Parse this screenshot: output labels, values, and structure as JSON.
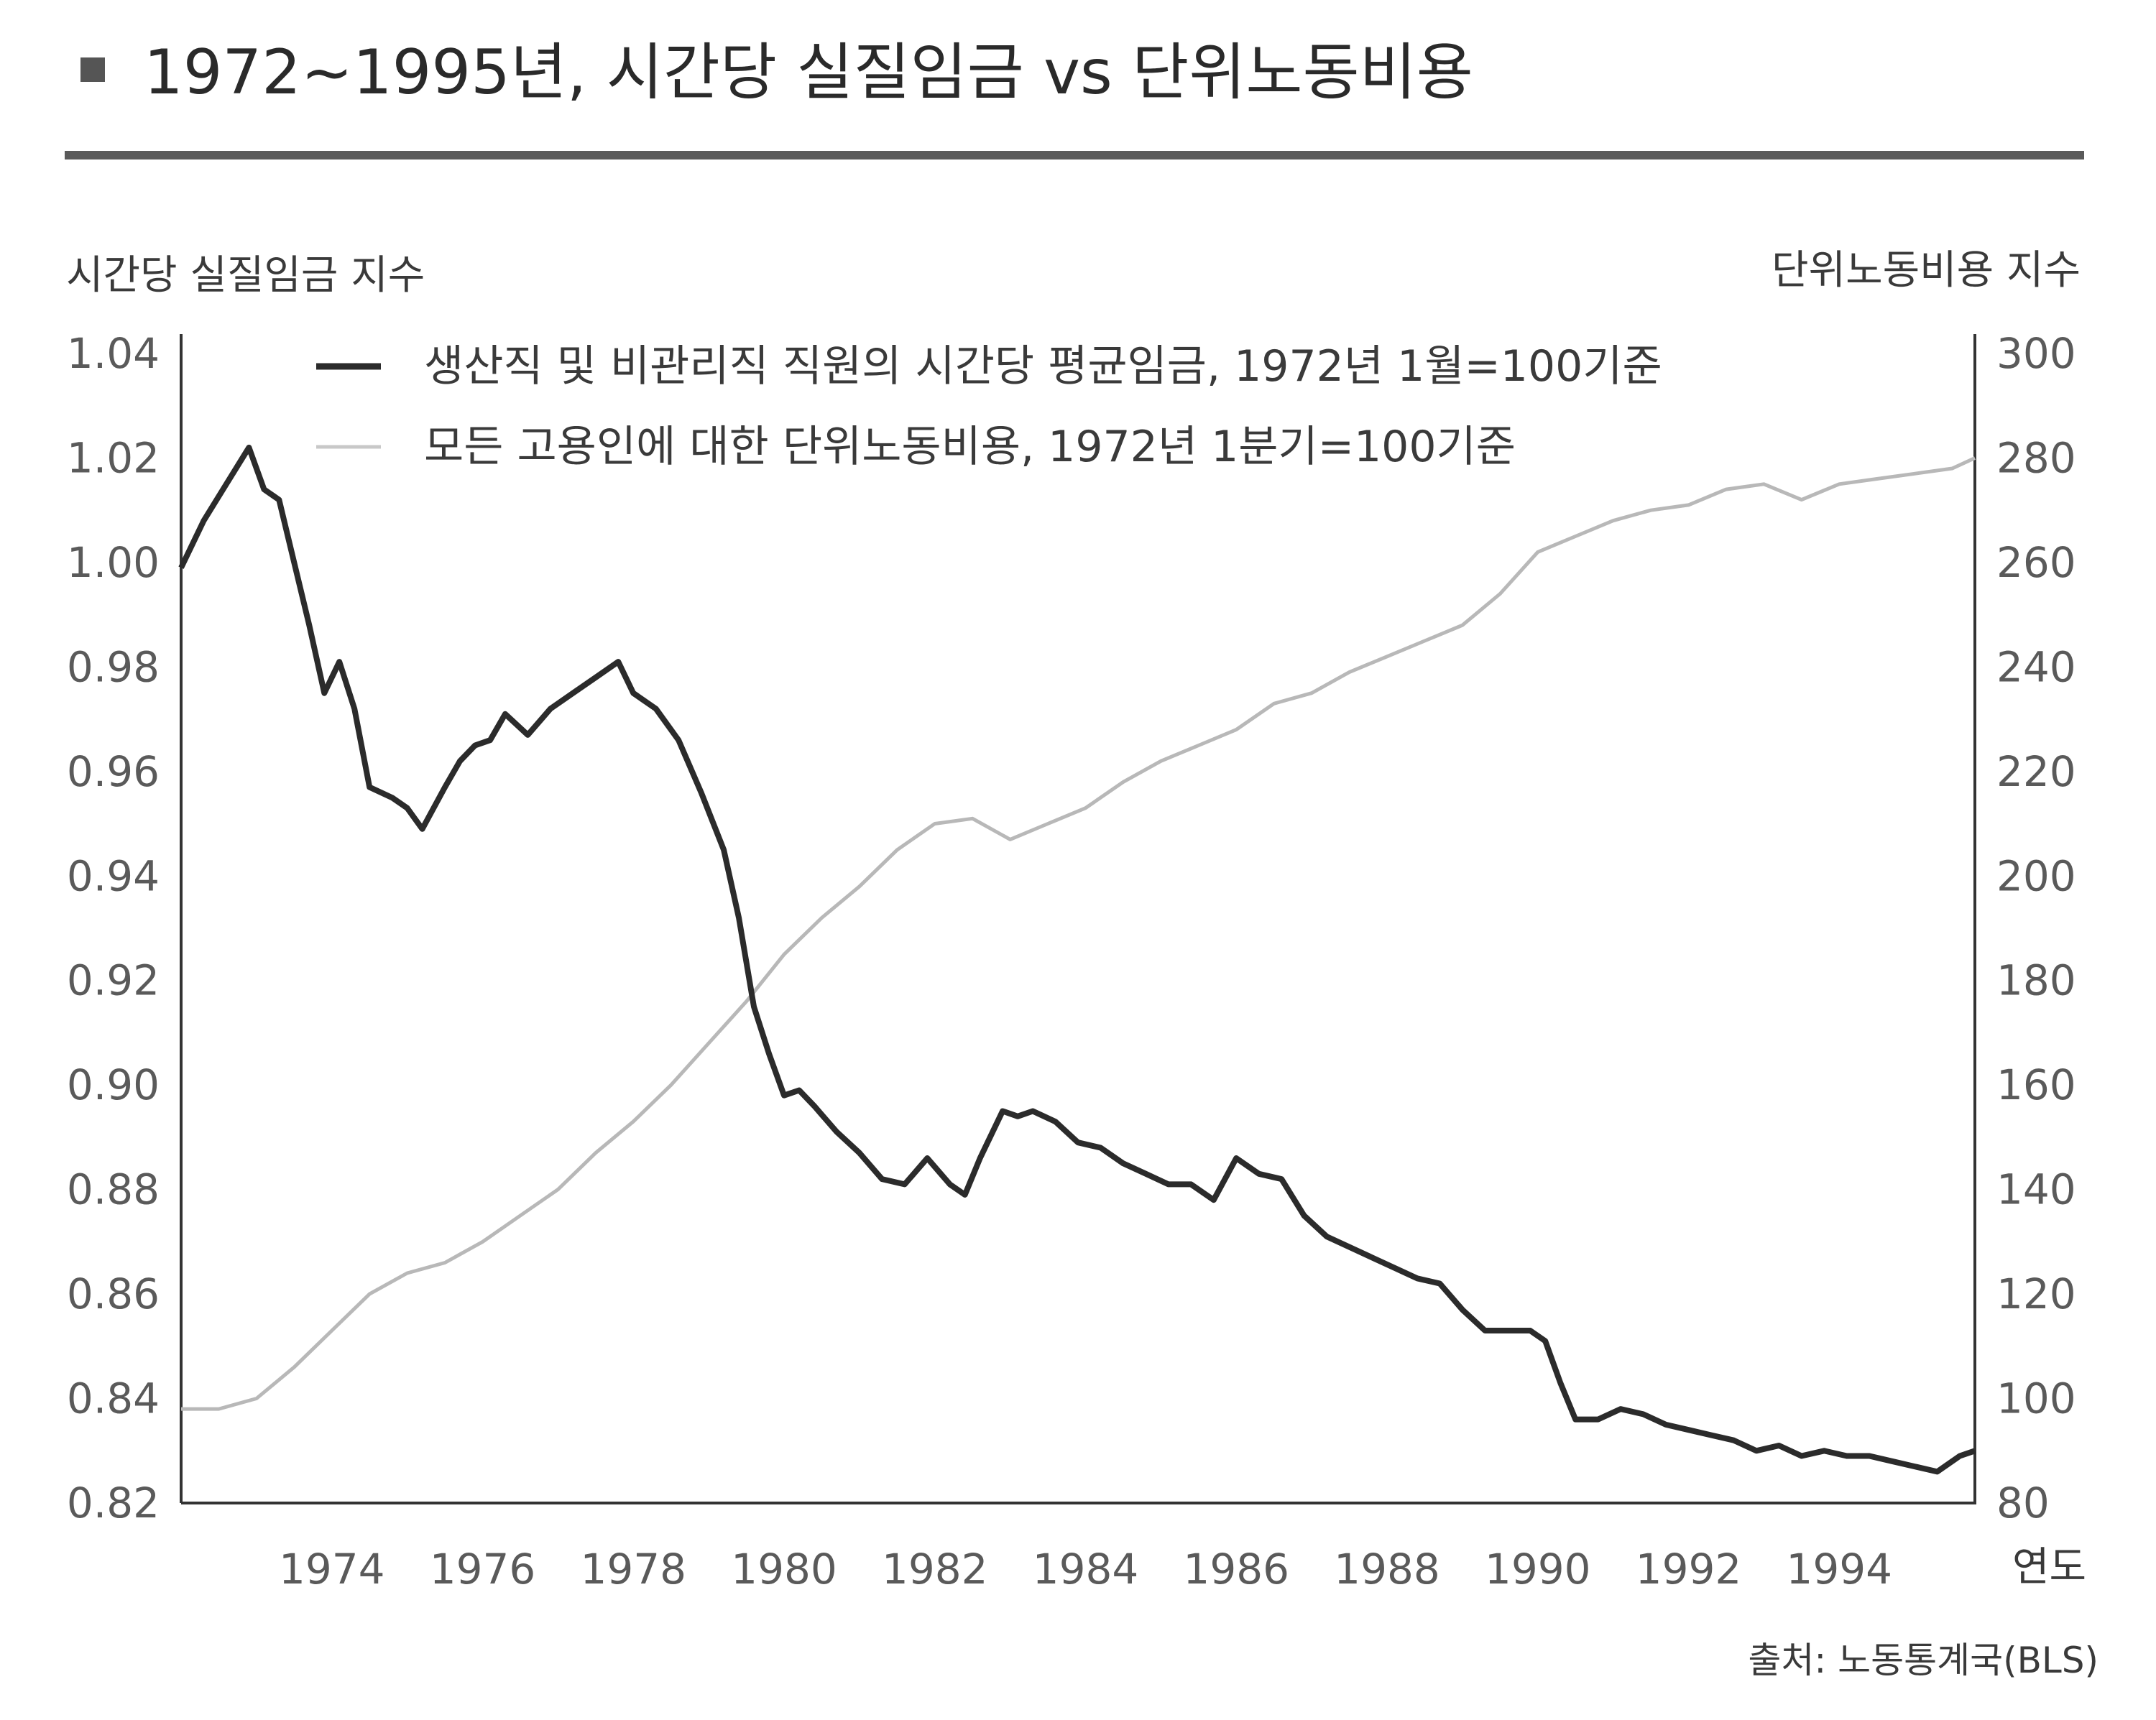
{
  "header": {
    "title": "1972~1995년, 시간당 실질임금 vs 단위노동비용"
  },
  "footer": {
    "source": "출처: 노동통계국(BLS)"
  },
  "chart_data": {
    "type": "line",
    "title": "1972~1995년, 시간당 실질임금 vs 단위노동비용",
    "ylabel_left": "시간당 실질임금 지수",
    "ylabel_right": "단위노동비용 지수",
    "xlabel": "연도",
    "xlim": [
      1972,
      1995.8
    ],
    "ylim_left": [
      0.82,
      1.04
    ],
    "ylim_right": [
      80,
      300
    ],
    "x_ticks": [
      "1974",
      "1976",
      "1978",
      "1980",
      "1982",
      "1984",
      "1986",
      "1988",
      "1990",
      "1992",
      "1994"
    ],
    "y_ticks_left": [
      "0.82",
      "0.84",
      "0.86",
      "0.88",
      "0.90",
      "0.92",
      "0.94",
      "0.96",
      "0.98",
      "1.00",
      "1.02",
      "1.04"
    ],
    "y_ticks_right": [
      "80",
      "100",
      "120",
      "140",
      "160",
      "180",
      "200",
      "220",
      "240",
      "260",
      "280",
      "300"
    ],
    "grid": false,
    "legend_position": "top",
    "series": [
      {
        "name": "생산직 및 비관리직 직원의 시간당 평균임금, 1972년 1월=100기준",
        "axis": "left",
        "color": "#2b2b2b",
        "x": [
          1972.0,
          1972.3,
          1972.6,
          1972.9,
          1973.1,
          1973.3,
          1973.5,
          1973.7,
          1973.9,
          1974.1,
          1974.3,
          1974.5,
          1974.8,
          1975.0,
          1975.2,
          1975.5,
          1975.7,
          1975.9,
          1976.1,
          1976.3,
          1976.6,
          1976.9,
          1977.2,
          1977.5,
          1977.8,
          1978.0,
          1978.3,
          1978.6,
          1978.9,
          1979.2,
          1979.4,
          1979.6,
          1979.8,
          1980.0,
          1980.2,
          1980.4,
          1980.7,
          1981.0,
          1981.3,
          1981.6,
          1981.9,
          1982.2,
          1982.4,
          1982.6,
          1982.9,
          1983.1,
          1983.3,
          1983.6,
          1983.9,
          1984.2,
          1984.5,
          1984.8,
          1985.1,
          1985.4,
          1985.7,
          1986.0,
          1986.3,
          1986.6,
          1986.9,
          1987.2,
          1987.5,
          1987.8,
          1988.1,
          1988.4,
          1988.7,
          1989.0,
          1989.3,
          1989.6,
          1989.9,
          1990.1,
          1990.3,
          1990.5,
          1990.8,
          1991.1,
          1991.4,
          1991.7,
          1992.0,
          1992.3,
          1992.6,
          1992.9,
          1993.2,
          1993.5,
          1993.8,
          1994.1,
          1994.4,
          1994.7,
          1995.0,
          1995.3,
          1995.6,
          1995.8
        ],
        "y": [
          0.999,
          1.008,
          1.015,
          1.022,
          1.014,
          1.012,
          1.0,
          0.988,
          0.975,
          0.981,
          0.972,
          0.957,
          0.955,
          0.953,
          0.949,
          0.957,
          0.962,
          0.965,
          0.966,
          0.971,
          0.967,
          0.972,
          0.975,
          0.978,
          0.981,
          0.975,
          0.972,
          0.966,
          0.956,
          0.945,
          0.932,
          0.915,
          0.906,
          0.898,
          0.899,
          0.896,
          0.891,
          0.887,
          0.882,
          0.881,
          0.886,
          0.881,
          0.879,
          0.886,
          0.895,
          0.894,
          0.895,
          0.893,
          0.889,
          0.888,
          0.885,
          0.883,
          0.881,
          0.881,
          0.878,
          0.886,
          0.883,
          0.882,
          0.875,
          0.871,
          0.869,
          0.867,
          0.865,
          0.863,
          0.862,
          0.857,
          0.853,
          0.853,
          0.853,
          0.851,
          0.843,
          0.836,
          0.836,
          0.838,
          0.837,
          0.835,
          0.834,
          0.833,
          0.832,
          0.83,
          0.831,
          0.829,
          0.83,
          0.829,
          0.829,
          0.828,
          0.827,
          0.826,
          0.829,
          0.83
        ]
      },
      {
        "name": "모든 고용인에 대한 단위노동비용, 1972년 1분기=100기준",
        "axis": "right",
        "color": "#b8b8b8",
        "x": [
          1972.0,
          1972.5,
          1973.0,
          1973.5,
          1974.0,
          1974.5,
          1975.0,
          1975.5,
          1976.0,
          1976.5,
          1977.0,
          1977.5,
          1978.0,
          1978.5,
          1979.0,
          1979.5,
          1980.0,
          1980.5,
          1981.0,
          1981.5,
          1982.0,
          1982.5,
          1983.0,
          1983.5,
          1984.0,
          1984.5,
          1985.0,
          1985.5,
          1986.0,
          1986.5,
          1987.0,
          1987.5,
          1988.0,
          1988.5,
          1989.0,
          1989.5,
          1990.0,
          1990.5,
          1991.0,
          1991.5,
          1992.0,
          1992.5,
          1993.0,
          1993.5,
          1994.0,
          1994.5,
          1995.0,
          1995.5,
          1995.8
        ],
        "y": [
          98,
          98,
          100,
          106,
          113,
          120,
          124,
          126,
          130,
          135,
          140,
          147,
          153,
          160,
          168,
          176,
          185,
          192,
          198,
          205,
          210,
          211,
          207,
          210,
          213,
          218,
          222,
          225,
          228,
          233,
          235,
          239,
          242,
          245,
          248,
          254,
          262,
          265,
          268,
          270,
          271,
          274,
          275,
          272,
          275,
          276,
          277,
          278,
          280
        ]
      }
    ]
  }
}
